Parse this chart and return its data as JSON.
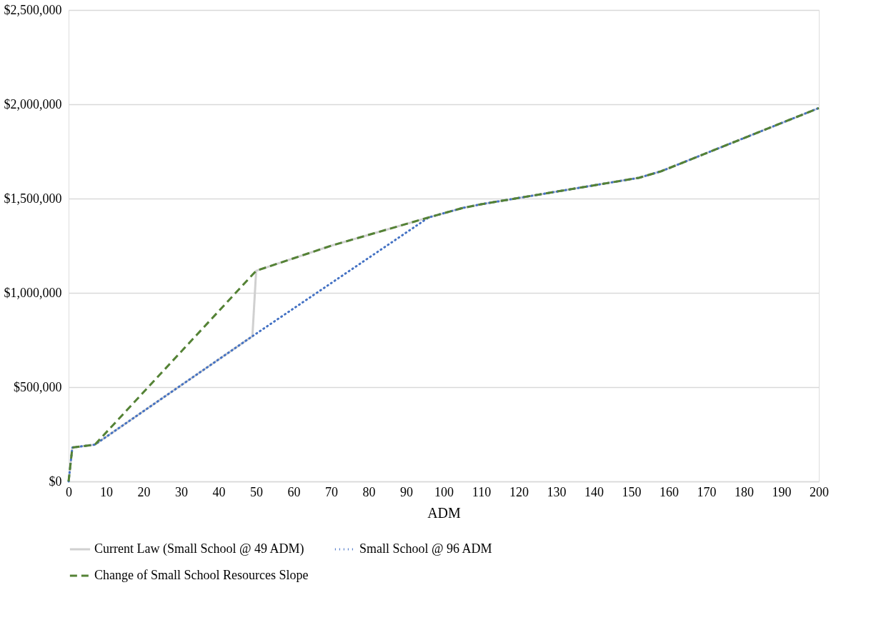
{
  "chart_data": {
    "type": "line",
    "xlabel": "ADM",
    "xlim": [
      0,
      200
    ],
    "xticks": [
      0,
      10,
      20,
      30,
      40,
      50,
      60,
      70,
      80,
      90,
      100,
      110,
      120,
      130,
      140,
      150,
      160,
      170,
      180,
      190,
      200
    ],
    "ylim": [
      0,
      2500000
    ],
    "yticks": [
      {
        "value": 0,
        "label": "$0"
      },
      {
        "value": 500000,
        "label": "$500,000"
      },
      {
        "value": 1000000,
        "label": "$1,000,000"
      },
      {
        "value": 1500000,
        "label": "$1,500,000"
      },
      {
        "value": 2000000,
        "label": "$2,000,000"
      },
      {
        "value": 2500000,
        "label": "$2,500,000"
      }
    ],
    "grid": "y",
    "legend": "bottom",
    "marker": "none",
    "series": [
      {
        "name": "Current Law (Small School @ 49 ADM)",
        "color": "#d0d0d0",
        "line_style": "solid",
        "x": [
          0,
          1,
          7,
          49,
          50,
          70,
          96,
          105,
          110,
          125,
          152,
          158,
          200
        ],
        "values": [
          0,
          180000,
          195000,
          770000,
          1117000,
          1250000,
          1400000,
          1450000,
          1470000,
          1520000,
          1610000,
          1645000,
          1980000
        ]
      },
      {
        "name": "Small School @ 96 ADM",
        "color": "#4472c4",
        "line_style": "dotted",
        "x": [
          0,
          1,
          7,
          49,
          96,
          105,
          110,
          125,
          152,
          158,
          200
        ],
        "values": [
          0,
          180000,
          195000,
          770000,
          1400000,
          1450000,
          1470000,
          1520000,
          1610000,
          1645000,
          1980000
        ]
      },
      {
        "name": "Change of Small School Resources Slope",
        "color": "#548235",
        "line_style": "dashed",
        "x": [
          0,
          1,
          7,
          50,
          70,
          96,
          105,
          110,
          125,
          152,
          158,
          200
        ],
        "values": [
          0,
          180000,
          195000,
          1117000,
          1250000,
          1400000,
          1450000,
          1470000,
          1520000,
          1610000,
          1645000,
          1980000
        ]
      }
    ]
  }
}
